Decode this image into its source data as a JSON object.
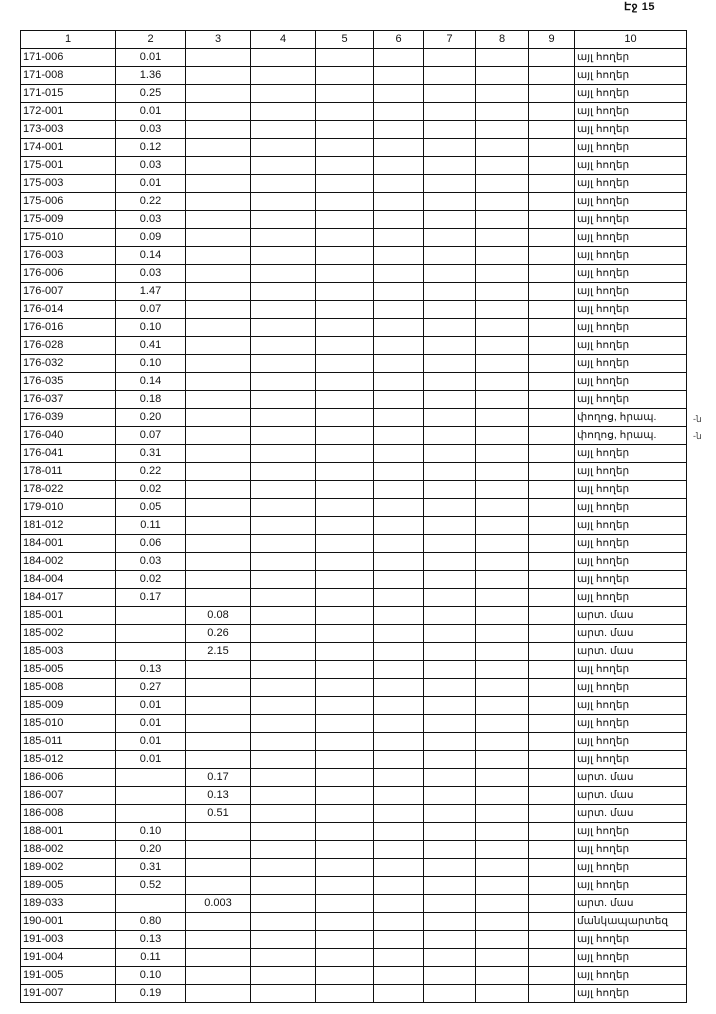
{
  "page_label": "Էջ 15",
  "side_notes": [
    "-ն",
    "-ն"
  ],
  "columns": [
    "1",
    "2",
    "3",
    "4",
    "5",
    "6",
    "7",
    "8",
    "9",
    "10"
  ],
  "rows": [
    [
      "171-006",
      "0.01",
      "",
      "այլ հողեր"
    ],
    [
      "171-008",
      "1.36",
      "",
      "այլ հողեր"
    ],
    [
      "171-015",
      "0.25",
      "",
      "այլ հողեր"
    ],
    [
      "172-001",
      "0.01",
      "",
      "այլ հողեր"
    ],
    [
      "173-003",
      "0.03",
      "",
      "այլ հողեր"
    ],
    [
      "174-001",
      "0.12",
      "",
      "այլ հողեր"
    ],
    [
      "175-001",
      "0.03",
      "",
      "այլ հողեր"
    ],
    [
      "175-003",
      "0.01",
      "",
      "այլ հողեր"
    ],
    [
      "175-006",
      "0.22",
      "",
      "այլ հողեր"
    ],
    [
      "175-009",
      "0.03",
      "",
      "այլ հողեր"
    ],
    [
      "175-010",
      "0.09",
      "",
      "այլ հողեր"
    ],
    [
      "176-003",
      "0.14",
      "",
      "այլ հողեր"
    ],
    [
      "176-006",
      "0.03",
      "",
      "այլ հողեր"
    ],
    [
      "176-007",
      "1.47",
      "",
      "այլ հողեր"
    ],
    [
      "176-014",
      "0.07",
      "",
      "այլ հողեր"
    ],
    [
      "176-016",
      "0.10",
      "",
      "այլ հողեր"
    ],
    [
      "176-028",
      "0.41",
      "",
      "այլ հողեր"
    ],
    [
      "176-032",
      "0.10",
      "",
      "այլ հողեր"
    ],
    [
      "176-035",
      "0.14",
      "",
      "այլ հողեր"
    ],
    [
      "176-037",
      "0.18",
      "",
      "այլ հողեր"
    ],
    [
      "176-039",
      "0.20",
      "",
      "փողոց, հրապ."
    ],
    [
      "176-040",
      "0.07",
      "",
      "փողոց, հրապ."
    ],
    [
      "176-041",
      "0.31",
      "",
      "այլ հողեր"
    ],
    [
      "178-011",
      "0.22",
      "",
      "այլ հողեր"
    ],
    [
      "178-022",
      "0.02",
      "",
      "այլ հողեր"
    ],
    [
      "179-010",
      "0.05",
      "",
      "այլ հողեր"
    ],
    [
      "181-012",
      "0.11",
      "",
      "այլ հողեր"
    ],
    [
      "184-001",
      "0.06",
      "",
      "այլ հողեր"
    ],
    [
      "184-002",
      "0.03",
      "",
      "այլ հողեր"
    ],
    [
      "184-004",
      "0.02",
      "",
      "այլ հողեր"
    ],
    [
      "184-017",
      "0.17",
      "",
      "այլ հողեր"
    ],
    [
      "185-001",
      "",
      "0.08",
      "արտ. մաս"
    ],
    [
      "185-002",
      "",
      "0.26",
      "արտ. մաս"
    ],
    [
      "185-003",
      "",
      "2.15",
      "արտ. մաս"
    ],
    [
      "185-005",
      "0.13",
      "",
      "այլ հողեր"
    ],
    [
      "185-008",
      "0.27",
      "",
      "այլ հողեր"
    ],
    [
      "185-009",
      "0.01",
      "",
      "այլ հողեր"
    ],
    [
      "185-010",
      "0.01",
      "",
      "այլ հողեր"
    ],
    [
      "185-011",
      "0.01",
      "",
      "այլ հողեր"
    ],
    [
      "185-012",
      "0.01",
      "",
      "այլ հողեր"
    ],
    [
      "186-006",
      "",
      "0.17",
      "արտ. մաս"
    ],
    [
      "186-007",
      "",
      "0.13",
      "արտ. մաս"
    ],
    [
      "186-008",
      "",
      "0.51",
      "արտ. մաս"
    ],
    [
      "188-001",
      "0.10",
      "",
      "այլ հողեր"
    ],
    [
      "188-002",
      "0.20",
      "",
      "այլ հողեր"
    ],
    [
      "189-002",
      "0.31",
      "",
      "այլ հողեր"
    ],
    [
      "189-005",
      "0.52",
      "",
      "այլ հողեր"
    ],
    [
      "189-033",
      "",
      "0.003",
      "արտ. մաս"
    ],
    [
      "190-001",
      "0.80",
      "",
      "մանկապարտեզ"
    ],
    [
      "191-003",
      "0.13",
      "",
      "այլ հողեր"
    ],
    [
      "191-004",
      "0.11",
      "",
      "այլ հողեր"
    ],
    [
      "191-005",
      "0.10",
      "",
      "այլ հողեր"
    ],
    [
      "191-007",
      "0.19",
      "",
      "այլ հողեր"
    ]
  ]
}
